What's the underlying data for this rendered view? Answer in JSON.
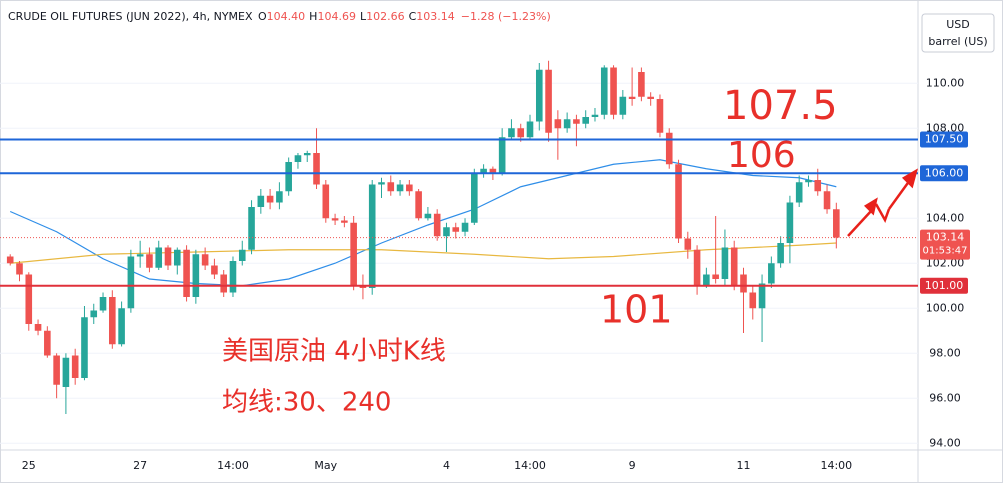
{
  "header": {
    "title": "CRUDE OIL FUTURES (JUN 2022), 4h, NYMEX",
    "ohlc": [
      {
        "key": "O",
        "text": "104.40"
      },
      {
        "key": "H",
        "text": "104.69"
      },
      {
        "key": "L",
        "text": "102.66"
      },
      {
        "key": "C",
        "text": "103.14"
      }
    ],
    "change": "−1.28 (−1.23%)",
    "currency": "USD",
    "unit": "barrel (US)"
  },
  "chart_data": {
    "type": "candlestick",
    "categories": [
      null,
      null,
      "25",
      null,
      null,
      null,
      null,
      null,
      null,
      null,
      null,
      null,
      null,
      null,
      "27",
      null,
      null,
      null,
      null,
      null,
      null,
      null,
      null,
      null,
      "14:00",
      null,
      null,
      null,
      null,
      null,
      null,
      null,
      null,
      null,
      "May",
      null,
      null,
      null,
      null,
      null,
      null,
      null,
      null,
      null,
      null,
      null,
      null,
      "4",
      null,
      null,
      null,
      null,
      null,
      null,
      null,
      null,
      "14:00",
      null,
      null,
      null,
      null,
      null,
      null,
      null,
      null,
      null,
      null,
      "9",
      null,
      null,
      null,
      null,
      null,
      null,
      null,
      null,
      null,
      null,
      null,
      "11",
      null,
      null,
      null,
      null,
      null,
      null,
      null,
      null,
      null,
      "14:00"
    ],
    "open": [
      102.3,
      102.0,
      101.5,
      99.3,
      99.0,
      97.9,
      96.5,
      97.9,
      96.9,
      99.6,
      99.9,
      100.5,
      98.4,
      100.0,
      102.3,
      102.4,
      101.8,
      102.7,
      101.9,
      102.6,
      100.5,
      102.4,
      101.9,
      101.5,
      100.7,
      102.1,
      102.6,
      104.5,
      105.0,
      104.7,
      105.2,
      106.5,
      106.8,
      106.9,
      105.5,
      104.0,
      103.9,
      103.8,
      101.0,
      100.9,
      105.5,
      105.6,
      105.2,
      105.5,
      105.2,
      104.0,
      104.2,
      103.2,
      103.6,
      103.4,
      103.8,
      106.0,
      106.2,
      106.0,
      107.6,
      108.0,
      107.6,
      108.3,
      110.6,
      108.4,
      108.0,
      108.4,
      108.2,
      108.5,
      108.6,
      110.7,
      108.6,
      109.4,
      110.5,
      109.4,
      109.3,
      107.8,
      106.4,
      103.1,
      102.6,
      101.0,
      101.5,
      101.3,
      102.7,
      101.5,
      100.7,
      100.0,
      101.1,
      102.0,
      102.9,
      104.7,
      105.6,
      105.7,
      105.2,
      104.4
    ],
    "high": [
      102.4,
      102.1,
      101.6,
      99.5,
      99.2,
      98.0,
      98.0,
      98.2,
      100.1,
      100.2,
      100.7,
      100.8,
      100.3,
      102.6,
      103.0,
      102.7,
      103.0,
      102.8,
      102.7,
      102.8,
      102.6,
      102.7,
      102.2,
      101.7,
      102.3,
      103.0,
      104.8,
      105.3,
      105.3,
      105.6,
      106.7,
      106.9,
      107.0,
      108.0,
      105.7,
      104.2,
      104.1,
      104.1,
      101.5,
      105.7,
      105.8,
      105.9,
      105.7,
      105.7,
      105.3,
      104.5,
      104.4,
      103.8,
      103.8,
      104.0,
      106.2,
      106.4,
      106.3,
      108.0,
      108.4,
      108.2,
      108.6,
      110.9,
      111.0,
      108.8,
      108.7,
      108.6,
      108.8,
      108.9,
      110.8,
      110.8,
      109.7,
      110.7,
      110.7,
      109.6,
      109.5,
      108.0,
      106.6,
      103.4,
      102.8,
      101.8,
      104.1,
      103.5,
      103.0,
      101.8,
      101.0,
      101.5,
      102.3,
      103.2,
      105.0,
      105.9,
      105.9,
      106.2,
      105.5,
      104.69
    ],
    "low": [
      101.9,
      101.2,
      99.0,
      98.8,
      97.8,
      96.0,
      95.3,
      96.6,
      96.8,
      99.3,
      99.8,
      98.2,
      98.3,
      99.8,
      101.8,
      101.6,
      101.7,
      101.7,
      101.5,
      100.3,
      100.2,
      101.7,
      101.3,
      100.5,
      100.5,
      101.9,
      102.4,
      104.2,
      104.4,
      104.4,
      105.0,
      106.2,
      106.5,
      105.3,
      103.8,
      103.7,
      103.6,
      100.8,
      100.4,
      100.6,
      104.9,
      105.0,
      105.0,
      105.0,
      103.9,
      103.9,
      103.0,
      102.5,
      103.1,
      103.2,
      103.7,
      105.8,
      105.7,
      105.9,
      107.5,
      107.4,
      107.5,
      107.9,
      107.4,
      106.6,
      107.8,
      107.2,
      108.0,
      108.3,
      108.4,
      108.4,
      108.4,
      109.0,
      109.2,
      109.0,
      107.6,
      106.2,
      102.9,
      102.2,
      100.6,
      100.9,
      101.1,
      101.0,
      100.8,
      98.9,
      99.5,
      98.5,
      100.9,
      101.8,
      102.0,
      104.5,
      105.4,
      105.0,
      104.2,
      102.66
    ],
    "close": [
      102.0,
      101.5,
      99.3,
      99.0,
      97.9,
      96.6,
      97.8,
      96.9,
      99.6,
      99.9,
      100.5,
      98.4,
      100.0,
      102.3,
      102.4,
      101.8,
      102.7,
      101.9,
      102.6,
      100.5,
      102.4,
      101.9,
      101.5,
      100.7,
      102.1,
      102.6,
      104.5,
      105.0,
      104.7,
      105.2,
      106.5,
      106.8,
      106.9,
      105.5,
      104.0,
      103.9,
      103.8,
      101.0,
      100.9,
      105.5,
      105.6,
      105.2,
      105.5,
      105.2,
      104.0,
      104.2,
      103.2,
      103.6,
      103.4,
      103.8,
      106.0,
      106.2,
      106.0,
      107.6,
      108.0,
      107.6,
      108.3,
      110.6,
      107.8,
      108.0,
      108.4,
      108.2,
      108.5,
      108.6,
      110.7,
      108.6,
      109.4,
      109.3,
      109.4,
      109.3,
      107.8,
      106.4,
      103.1,
      102.6,
      101.0,
      101.5,
      101.3,
      102.7,
      101.0,
      100.7,
      100.0,
      101.1,
      102.0,
      102.9,
      104.7,
      105.6,
      105.7,
      105.2,
      104.4,
      103.14
    ],
    "up_color": "#26a69a",
    "down_color": "#ef5350",
    "lines": [
      {
        "color": "#2f8ee8",
        "x": [
          0,
          5,
          10,
          15,
          20,
          25,
          30,
          35,
          40,
          45,
          50,
          55,
          60,
          65,
          70,
          75,
          80,
          85,
          89
        ],
        "values": [
          104.3,
          103.4,
          102.2,
          101.3,
          101.1,
          101.0,
          101.3,
          102.0,
          102.9,
          103.7,
          104.4,
          105.4,
          105.9,
          106.4,
          106.6,
          106.2,
          105.9,
          105.8,
          105.4
        ]
      },
      {
        "color": "#e8b840",
        "x": [
          0,
          10,
          20,
          30,
          40,
          50,
          58,
          65,
          75,
          85,
          89
        ],
        "values": [
          102.0,
          102.4,
          102.5,
          102.6,
          102.6,
          102.4,
          102.2,
          102.3,
          102.6,
          102.8,
          102.9
        ]
      }
    ],
    "xlim": [
      -1.1,
      97.8
    ],
    "ylim": [
      93.7,
      113.7
    ],
    "yticks": [
      {
        "value": 94,
        "label": "94.00"
      },
      {
        "value": 96,
        "label": "96.00"
      },
      {
        "value": 98,
        "label": "98.00"
      },
      {
        "value": 100,
        "label": "100.00"
      },
      {
        "value": 102,
        "label": "102.00"
      },
      {
        "value": 104,
        "label": "104.00"
      },
      {
        "value": 106,
        "label": "106.00"
      },
      {
        "value": 108,
        "label": "108.00"
      },
      {
        "value": 110,
        "label": "110.00"
      }
    ],
    "grid": true,
    "hlines": [
      {
        "value": 107.5,
        "label": "107.50",
        "color": "#1e66d8"
      },
      {
        "value": 106,
        "label": "106.00",
        "color": "#1e66d8"
      },
      {
        "value": 101,
        "label": "101.00",
        "color": "#e0303a"
      }
    ],
    "price_line": {
      "value": 103.14,
      "label": "103.14",
      "countdown": "01:53:47",
      "color": "#ef5350"
    },
    "annotations": [
      "107.5",
      "106",
      "101",
      "美国原油 4小时K线",
      "均线:30、240"
    ]
  }
}
